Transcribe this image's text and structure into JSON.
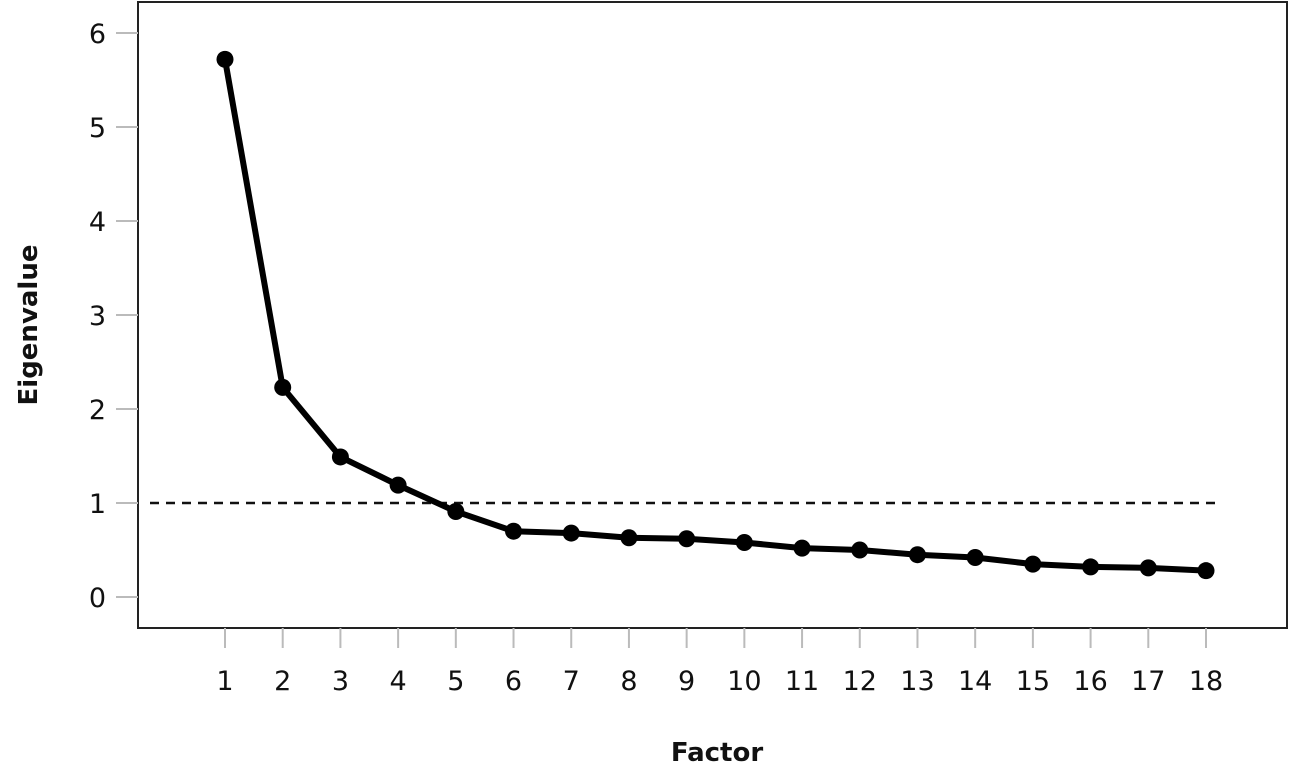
{
  "chart_data": {
    "type": "line",
    "title": "",
    "xlabel": "Factor",
    "ylabel": "Eigenvalue",
    "x": [
      1,
      2,
      3,
      4,
      5,
      6,
      7,
      8,
      9,
      10,
      11,
      12,
      13,
      14,
      15,
      16,
      17,
      18
    ],
    "x_ticks": [
      "1",
      "2",
      "3",
      "4",
      "5",
      "6",
      "7",
      "8",
      "9",
      "10",
      "11",
      "12",
      "13",
      "14",
      "15",
      "16",
      "17",
      "18"
    ],
    "y_ticks": [
      "0",
      "1",
      "2",
      "3",
      "4",
      "5",
      "6"
    ],
    "series": [
      {
        "values": [
          5.72,
          2.23,
          1.49,
          1.19,
          0.91,
          0.7,
          0.68,
          0.63,
          0.62,
          0.58,
          0.52,
          0.5,
          0.45,
          0.42,
          0.35,
          0.32,
          0.31,
          0.28
        ],
        "color": "#000000"
      }
    ],
    "reference_line": {
      "y": 1,
      "style": "dashed"
    },
    "xlim": [
      0.0,
      19.5
    ],
    "ylim": [
      -0.33,
      6.28
    ],
    "grid": false,
    "legend": "none"
  }
}
